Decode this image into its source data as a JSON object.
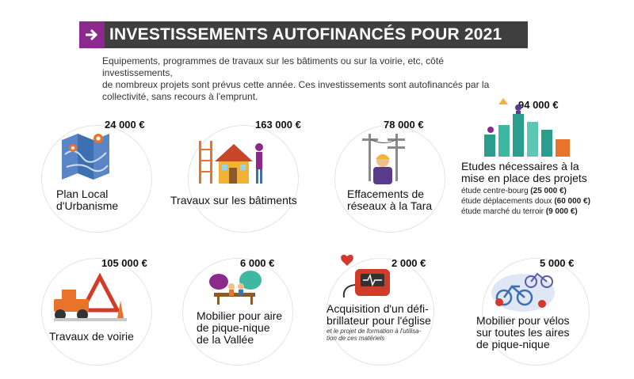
{
  "header": {
    "title": "INVESTISSEMENTS AUTOFINANCÉS POUR 2021",
    "arrow_icon": "arrow-right-icon"
  },
  "intro": {
    "line1": "Equipements, programmes de travaux sur les bâtiments ou sur la voirie, etc, côté investissements,",
    "line2": "de nombreux projets sont prévus cette année. Ces investissements sont autofinancés par la",
    "line3": "collectivité, sans recours à l'emprunt."
  },
  "items": [
    {
      "amount": "24 000 €",
      "label1": "Plan Local",
      "label2": "d'Urbanisme"
    },
    {
      "amount": "163 000 €",
      "label1": "Travaux sur les bâtiments"
    },
    {
      "amount": "78 000 €",
      "label1": "Effacements de",
      "label2": "réseaux à la Tara"
    },
    {
      "amount": "94 000 €",
      "label1": "Etudes nécessaires à la",
      "label2": "mise en place des projets",
      "details": [
        {
          "text": "étude centre-bourg",
          "value": "(25 000 €)"
        },
        {
          "text": "étude déplacements doux",
          "value": "(60 000 €)"
        },
        {
          "text": "étude marché du terroir",
          "value": "(9 000 €)"
        }
      ]
    },
    {
      "amount": "105 000 €",
      "label1": "Travaux de voirie"
    },
    {
      "amount": "6 000 €",
      "label1": "Mobilier pour aire",
      "label2": "de pique-nique",
      "label3": "de la Vallée"
    },
    {
      "amount": "2 000 €",
      "label1": "Acquisition d'un défi-",
      "label2": "brillateur pour l'église",
      "note1": "et le projet de formation à l'utilisa-",
      "note2": "tion de ces matériels"
    },
    {
      "amount": "5 000 €",
      "label1": "Mobilier pour vélos",
      "label2": "sur toutes les aires",
      "label3": "de pique-nique"
    }
  ],
  "colors": {
    "accent": "#8b2a8c",
    "title_bg": "#3f3f3f",
    "illustration_blue": "#3e6fb0",
    "illustration_orange": "#e8742c"
  }
}
